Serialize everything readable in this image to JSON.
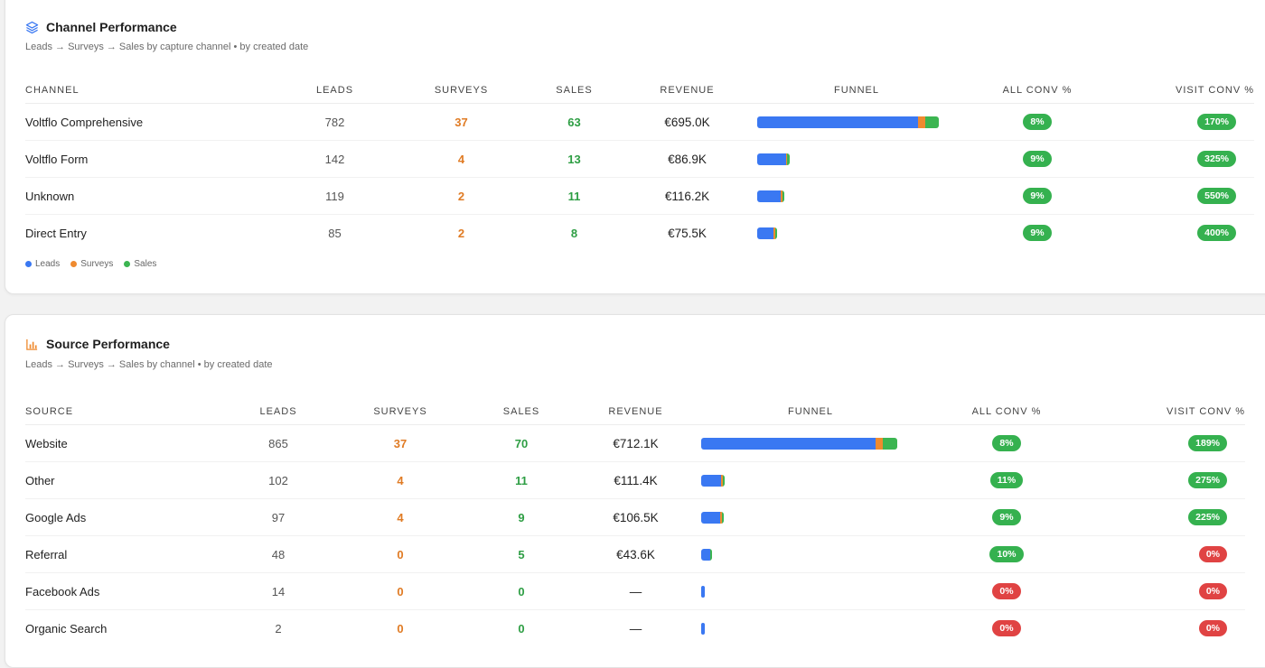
{
  "channel_section": {
    "title": "Channel Performance",
    "subtitle": "Leads → Surveys → Sales by capture channel • by created date",
    "headers": [
      "CHANNEL",
      "LEADS",
      "SURVEYS",
      "SALES",
      "REVENUE",
      "FUNNEL",
      "ALL CONV %",
      "VISIT CONV %"
    ],
    "rows": [
      {
        "name": "Voltflo Comprehensive",
        "leads": "782",
        "surveys": "37",
        "sales": "63",
        "revenue": "€695.0K",
        "all_conv": "8%",
        "visit_conv": "170%"
      },
      {
        "name": "Voltflo Form",
        "leads": "142",
        "surveys": "4",
        "sales": "13",
        "revenue": "€86.9K",
        "all_conv": "9%",
        "visit_conv": "325%"
      },
      {
        "name": "Unknown",
        "leads": "119",
        "surveys": "2",
        "sales": "11",
        "revenue": "€116.2K",
        "all_conv": "9%",
        "visit_conv": "550%"
      },
      {
        "name": "Direct Entry",
        "leads": "85",
        "surveys": "2",
        "sales": "8",
        "revenue": "€75.5K",
        "all_conv": "9%",
        "visit_conv": "400%"
      }
    ],
    "legend": {
      "leads": "Leads",
      "surveys": "Surveys",
      "sales": "Sales"
    }
  },
  "source_section": {
    "title": "Source Performance",
    "subtitle": "Leads → Surveys → Sales by channel • by created date",
    "headers": [
      "SOURCE",
      "LEADS",
      "SURVEYS",
      "SALES",
      "REVENUE",
      "FUNNEL",
      "ALL CONV %",
      "VISIT CONV %"
    ],
    "rows": [
      {
        "name": "Website",
        "leads": "865",
        "surveys": "37",
        "sales": "70",
        "revenue": "€712.1K",
        "all_conv": "8%",
        "visit_conv": "189%"
      },
      {
        "name": "Other",
        "leads": "102",
        "surveys": "4",
        "sales": "11",
        "revenue": "€111.4K",
        "all_conv": "11%",
        "visit_conv": "275%"
      },
      {
        "name": "Google Ads",
        "leads": "97",
        "surveys": "4",
        "sales": "9",
        "revenue": "€106.5K",
        "all_conv": "9%",
        "visit_conv": "225%"
      },
      {
        "name": "Referral",
        "leads": "48",
        "surveys": "0",
        "sales": "5",
        "revenue": "€43.6K",
        "all_conv": "10%",
        "visit_conv": "0%"
      },
      {
        "name": "Facebook Ads",
        "leads": "14",
        "surveys": "0",
        "sales": "0",
        "revenue": "—",
        "all_conv": "0%",
        "visit_conv": "0%"
      },
      {
        "name": "Organic Search",
        "leads": "2",
        "surveys": "0",
        "sales": "0",
        "revenue": "—",
        "all_conv": "0%",
        "visit_conv": "0%"
      }
    ]
  },
  "colors": {
    "leads": "#3a78f2",
    "surveys": "#ef8a2f",
    "sales": "#3cb551",
    "pill_good": "#35b14f",
    "pill_bad": "#e04343"
  },
  "icons": {
    "channel": "layers-icon",
    "source": "bar-chart-icon"
  }
}
